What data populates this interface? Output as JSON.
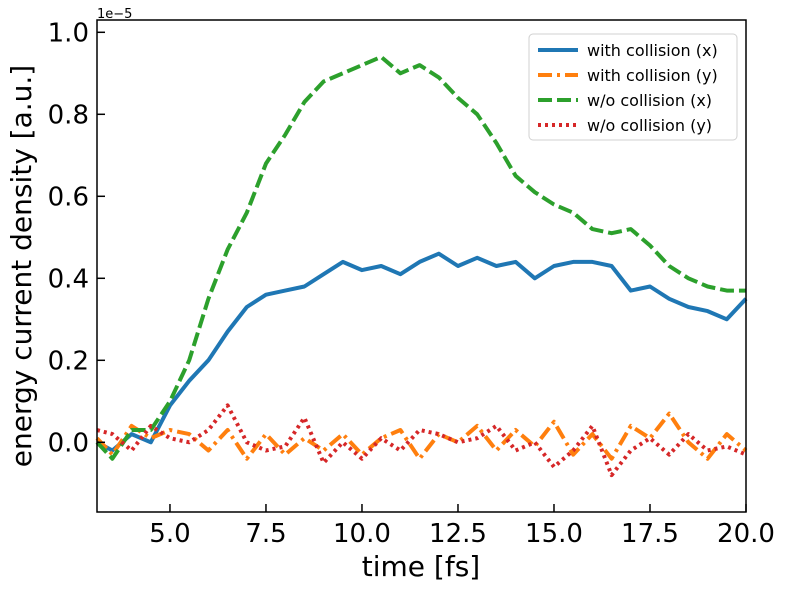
{
  "chart_data": {
    "type": "line",
    "title": "",
    "xlabel": "time [fs]",
    "ylabel": "energy current density [a.u.]",
    "y_offset_text": "1e−5",
    "xlim": [
      3.1,
      20.0
    ],
    "ylim": [
      -0.17,
      1.03
    ],
    "x_ticks": [
      5.0,
      7.5,
      10.0,
      12.5,
      15.0,
      17.5,
      20.0
    ],
    "x_tick_labels": [
      "5.0",
      "7.5",
      "10.0",
      "12.5",
      "15.0",
      "17.5",
      "20.0"
    ],
    "y_ticks": [
      0.0,
      0.2,
      0.4,
      0.6,
      0.8,
      1.0
    ],
    "y_tick_labels": [
      "0.0",
      "0.2",
      "0.4",
      "0.6",
      "0.8",
      "1.0"
    ],
    "legend_position": "top-right",
    "x": [
      3.1,
      3.5,
      4.0,
      4.5,
      5.0,
      5.5,
      6.0,
      6.5,
      7.0,
      7.5,
      8.0,
      8.5,
      9.0,
      9.5,
      10.0,
      10.5,
      11.0,
      11.5,
      12.0,
      12.5,
      13.0,
      13.5,
      14.0,
      14.5,
      15.0,
      15.5,
      16.0,
      16.5,
      17.0,
      17.5,
      18.0,
      18.5,
      19.0,
      19.5,
      20.0
    ],
    "series": [
      {
        "name": "with collision (x)",
        "color": "#1f77b4",
        "style": "solid",
        "values": [
          0.0,
          -0.02,
          0.02,
          0.0,
          0.09,
          0.15,
          0.2,
          0.27,
          0.33,
          0.36,
          0.37,
          0.38,
          0.41,
          0.44,
          0.42,
          0.43,
          0.41,
          0.44,
          0.46,
          0.43,
          0.45,
          0.43,
          0.44,
          0.4,
          0.43,
          0.44,
          0.44,
          0.43,
          0.37,
          0.38,
          0.35,
          0.33,
          0.32,
          0.3,
          0.35
        ]
      },
      {
        "name": "with collision (y)",
        "color": "#ff7f0e",
        "style": "dashdot",
        "values": [
          0.01,
          -0.03,
          0.04,
          0.01,
          0.03,
          0.02,
          -0.02,
          0.03,
          -0.04,
          0.02,
          -0.03,
          0.01,
          -0.02,
          0.02,
          -0.03,
          0.01,
          0.03,
          -0.04,
          0.02,
          0.0,
          0.04,
          -0.02,
          0.03,
          -0.01,
          0.05,
          -0.03,
          0.02,
          -0.04,
          0.04,
          0.01,
          0.07,
          0.0,
          -0.04,
          0.02,
          -0.02
        ]
      },
      {
        "name": "w/o collision (x)",
        "color": "#2ca02c",
        "style": "dashed",
        "values": [
          0.0,
          -0.04,
          0.03,
          0.03,
          0.1,
          0.2,
          0.35,
          0.47,
          0.56,
          0.68,
          0.75,
          0.83,
          0.88,
          0.9,
          0.92,
          0.94,
          0.9,
          0.92,
          0.89,
          0.84,
          0.8,
          0.73,
          0.65,
          0.61,
          0.58,
          0.56,
          0.52,
          0.51,
          0.52,
          0.48,
          0.43,
          0.4,
          0.38,
          0.37,
          0.37
        ]
      },
      {
        "name": "w/o collision (y)",
        "color": "#d62728",
        "style": "dotted",
        "values": [
          0.03,
          0.02,
          -0.02,
          0.04,
          0.01,
          0.0,
          0.03,
          0.09,
          0.0,
          -0.02,
          -0.01,
          0.06,
          -0.05,
          0.0,
          -0.04,
          0.01,
          -0.02,
          0.03,
          0.02,
          0.0,
          0.01,
          0.04,
          -0.02,
          0.0,
          -0.06,
          -0.02,
          0.04,
          -0.08,
          -0.02,
          0.01,
          -0.03,
          0.02,
          -0.02,
          -0.01,
          -0.03
        ]
      }
    ]
  }
}
